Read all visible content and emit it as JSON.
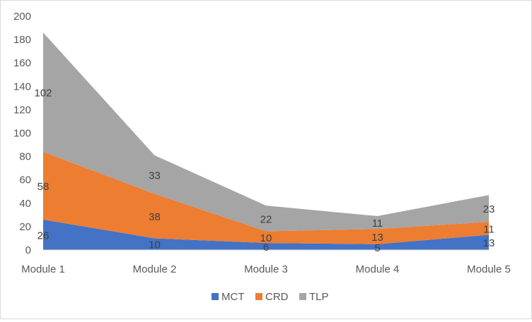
{
  "chart_data": {
    "type": "area",
    "stacked": true,
    "title": "",
    "xlabel": "",
    "ylabel": "",
    "categories": [
      "Module 1",
      "Module 2",
      "Module 3",
      "Module 4",
      "Module 5"
    ],
    "ylim": [
      0,
      200
    ],
    "yticks": [
      0,
      20,
      40,
      60,
      80,
      100,
      120,
      140,
      160,
      180,
      200
    ],
    "grid": false,
    "legend": "bottom",
    "data_labels": true,
    "series": [
      {
        "name": "MCT",
        "values": [
          26,
          10,
          6,
          5,
          13
        ],
        "color": "#4472C4"
      },
      {
        "name": "CRD",
        "values": [
          58,
          38,
          10,
          13,
          11
        ],
        "color": "#ED7D31"
      },
      {
        "name": "TLP",
        "values": [
          102,
          33,
          22,
          11,
          23
        ],
        "color": "#A5A5A5"
      }
    ]
  }
}
